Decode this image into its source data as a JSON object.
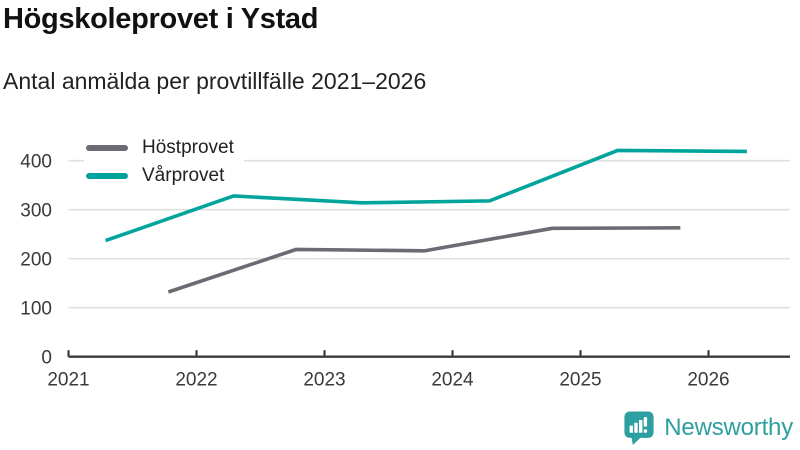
{
  "header": {
    "title": "Högskoleprovet i Ystad",
    "subtitle": "Antal anmälda per provtillfälle 2021–2026"
  },
  "chart_data": {
    "type": "line",
    "title": "Högskoleprovet i Ystad",
    "subtitle": "Antal anmälda per provtillfälle 2021–2026",
    "xlabel": "",
    "ylabel": "",
    "xticks": [
      2021,
      2022,
      2023,
      2024,
      2025,
      2026
    ],
    "yticks": [
      0,
      100,
      200,
      300,
      400
    ],
    "xlim": [
      2021,
      2026.65
    ],
    "ylim": [
      0,
      445
    ],
    "grid": "horizontal",
    "legend_position": "top-left",
    "grid_color": "#e0e0e0",
    "axis_color": "#3b3b3b",
    "tick_label_color": "#3a3a3a",
    "series": [
      {
        "name": "Höstprovet",
        "color": "#6b6b73",
        "x": [
          2021.78,
          2022.78,
          2023.78,
          2024.78,
          2025.78
        ],
        "values": [
          132,
          219,
          216,
          262,
          263
        ]
      },
      {
        "name": "Vårprovet",
        "color": "#00a49b",
        "x": [
          2021.29,
          2022.29,
          2023.29,
          2024.29,
          2025.29,
          2026.3
        ],
        "values": [
          237,
          328,
          314,
          318,
          421,
          419
        ]
      }
    ]
  },
  "footer": {
    "brand_name": "Newsworthy",
    "brand_color": "#2d9fa0"
  }
}
